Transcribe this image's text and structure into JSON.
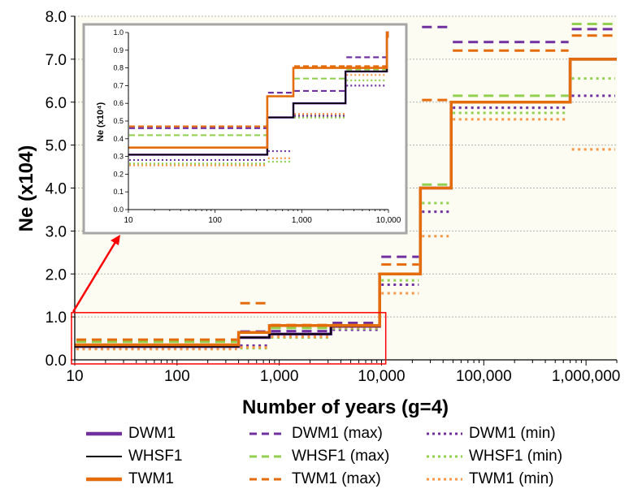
{
  "chart_data": {
    "type": "line",
    "xlabel": "Number of years (g=4)",
    "ylabel": "Ne (x104)",
    "x_scale": "log",
    "xlim": [
      10,
      2000000
    ],
    "ylim": [
      0,
      8
    ],
    "x_ticks": [
      10,
      100,
      1000,
      10000,
      100000,
      1000000
    ],
    "x_tick_labels": [
      "10",
      "100",
      "1,000",
      "10,000",
      "100,000",
      "1,000,000"
    ],
    "y_ticks": [
      0,
      1,
      2,
      3,
      4,
      5,
      6,
      7,
      8
    ],
    "y_tick_labels": [
      "0.0",
      "1.0",
      "2.0",
      "3.0",
      "4.0",
      "5.0",
      "6.0",
      "7.0",
      "8.0"
    ],
    "grid": "horizontal",
    "background": "#fdfcf3",
    "colors": {
      "DWM1": "#7030a0",
      "WHSF1": "#000000",
      "TWM1": "#e46c0a",
      "WHSF1_range": "#92d050"
    },
    "highlight_box": {
      "xlim": [
        10,
        11000
      ],
      "ylim": [
        0,
        1.1
      ],
      "color": "#ff0000"
    },
    "series": [
      {
        "name": "DWM1",
        "style": "solid",
        "color": "#7030a0",
        "points": [
          [
            10,
            0.31
          ],
          [
            400,
            0.31
          ],
          [
            400,
            0.52
          ],
          [
            800,
            0.52
          ],
          [
            800,
            0.6
          ],
          [
            3200,
            0.6
          ],
          [
            3200,
            0.78
          ],
          [
            9600,
            0.78
          ],
          [
            9600,
            2.0
          ],
          [
            24000,
            2.0
          ],
          [
            24000,
            4.0
          ],
          [
            48000,
            4.0
          ],
          [
            48000,
            6.0
          ],
          [
            700000,
            6.0
          ],
          [
            700000,
            7.0
          ],
          [
            2000000,
            7.0
          ]
        ]
      },
      {
        "name": "WHSF1",
        "style": "solid",
        "color": "#000000",
        "points": [
          [
            10,
            0.31
          ],
          [
            400,
            0.31
          ],
          [
            400,
            0.52
          ],
          [
            800,
            0.52
          ],
          [
            800,
            0.6
          ],
          [
            3200,
            0.6
          ],
          [
            3200,
            0.78
          ],
          [
            9600,
            0.78
          ],
          [
            9600,
            2.0
          ],
          [
            24000,
            2.0
          ],
          [
            24000,
            4.0
          ],
          [
            48000,
            4.0
          ],
          [
            48000,
            6.0
          ],
          [
            700000,
            6.0
          ],
          [
            700000,
            7.0
          ],
          [
            2000000,
            7.0
          ]
        ]
      },
      {
        "name": "TWM1",
        "style": "solid",
        "color": "#e46c0a",
        "points": [
          [
            10,
            0.35
          ],
          [
            400,
            0.35
          ],
          [
            400,
            0.64
          ],
          [
            800,
            0.64
          ],
          [
            800,
            0.8
          ],
          [
            9600,
            0.8
          ],
          [
            9600,
            2.0
          ],
          [
            24000,
            2.0
          ],
          [
            24000,
            4.0
          ],
          [
            48000,
            4.0
          ],
          [
            48000,
            6.0
          ],
          [
            700000,
            6.0
          ],
          [
            700000,
            7.0
          ],
          [
            2000000,
            7.0
          ]
        ]
      },
      {
        "name": "DWM1 (max)",
        "style": "dashed",
        "color": "#7030a0",
        "segments": [
          [
            10,
            400,
            0.46
          ],
          [
            400,
            800,
            0.66
          ],
          [
            800,
            3200,
            0.67
          ],
          [
            3200,
            9600,
            0.86
          ],
          [
            9600,
            24000,
            2.4
          ],
          [
            24000,
            48000,
            7.75
          ],
          [
            48000,
            700000,
            7.4
          ],
          [
            700000,
            2000000,
            7.7
          ]
        ]
      },
      {
        "name": "WHSF1 (max)",
        "style": "dashed",
        "color": "#92d050",
        "segments": [
          [
            10,
            400,
            0.42
          ],
          [
            400,
            800,
            0.64
          ],
          [
            800,
            3200,
            0.74
          ],
          [
            3200,
            9600,
            0.79
          ],
          [
            9600,
            24000,
            2.0
          ],
          [
            24000,
            48000,
            4.08
          ],
          [
            48000,
            700000,
            6.15
          ],
          [
            700000,
            2000000,
            7.82
          ]
        ]
      },
      {
        "name": "TWM1 (max)",
        "style": "dashed",
        "color": "#e46c0a",
        "segments": [
          [
            10,
            400,
            0.47
          ],
          [
            400,
            800,
            1.32
          ],
          [
            800,
            3200,
            0.81
          ],
          [
            3200,
            9600,
            0.81
          ],
          [
            9600,
            24000,
            2.22
          ],
          [
            24000,
            48000,
            6.05
          ],
          [
            48000,
            700000,
            7.2
          ],
          [
            700000,
            2000000,
            7.55
          ]
        ]
      },
      {
        "name": "DWM1 (min)",
        "style": "dotted",
        "color": "#7030a0",
        "segments": [
          [
            10,
            400,
            0.28
          ],
          [
            400,
            800,
            0.33
          ],
          [
            800,
            3200,
            0.53
          ],
          [
            3200,
            9600,
            0.7
          ],
          [
            9600,
            24000,
            1.75
          ],
          [
            24000,
            48000,
            3.45
          ],
          [
            48000,
            700000,
            5.87
          ],
          [
            700000,
            2000000,
            6.15
          ]
        ]
      },
      {
        "name": "WHSF1 (min)",
        "style": "dotted",
        "color": "#92d050",
        "segments": [
          [
            10,
            400,
            0.26
          ],
          [
            400,
            800,
            0.27
          ],
          [
            800,
            3200,
            0.52
          ],
          [
            3200,
            9600,
            0.73
          ],
          [
            9600,
            24000,
            1.85
          ],
          [
            24000,
            48000,
            3.65
          ],
          [
            48000,
            700000,
            5.75
          ],
          [
            700000,
            2000000,
            6.55
          ]
        ]
      },
      {
        "name": "TWM1 (min)",
        "style": "dotted",
        "color": "#f79646",
        "segments": [
          [
            10,
            400,
            0.25
          ],
          [
            400,
            800,
            0.29
          ],
          [
            800,
            3200,
            0.54
          ],
          [
            3200,
            9600,
            0.76
          ],
          [
            9600,
            24000,
            1.55
          ],
          [
            24000,
            48000,
            2.88
          ],
          [
            48000,
            700000,
            5.6
          ],
          [
            700000,
            2000000,
            4.9
          ]
        ]
      }
    ],
    "inset": {
      "ylabel": "Ne (x10⁴)",
      "x_scale": "log",
      "xlim": [
        10,
        10000
      ],
      "ylim": [
        0,
        1.0
      ],
      "x_ticks": [
        10,
        100,
        1000,
        10000
      ],
      "x_tick_labels": [
        "10",
        "100",
        "1,000",
        "10,000"
      ],
      "y_ticks": [
        0,
        0.1,
        0.2,
        0.3,
        0.4,
        0.5,
        0.6,
        0.7,
        0.8,
        0.9,
        1.0
      ],
      "y_tick_labels": [
        "0.0",
        "0.1",
        "0.2",
        "0.3",
        "0.4",
        "0.5",
        "0.6",
        "0.7",
        "0.8",
        "0.9",
        "1.0"
      ]
    },
    "legend_placement": "bottom",
    "legend": [
      {
        "label": "DWM1",
        "series": "DWM1"
      },
      {
        "label": "DWM1 (max)",
        "series": "DWM1 (max)"
      },
      {
        "label": "DWM1 (min)",
        "series": "DWM1 (min)"
      },
      {
        "label": "WHSF1",
        "series": "WHSF1"
      },
      {
        "label": "WHSF1 (max)",
        "series": "WHSF1 (max)"
      },
      {
        "label": "WHSF1 (min)",
        "series": "WHSF1 (min)"
      },
      {
        "label": "TWM1",
        "series": "TWM1"
      },
      {
        "label": "TWM1 (max)",
        "series": "TWM1 (max)"
      },
      {
        "label": "TWM1 (min)",
        "series": "TWM1 (min)"
      }
    ]
  }
}
